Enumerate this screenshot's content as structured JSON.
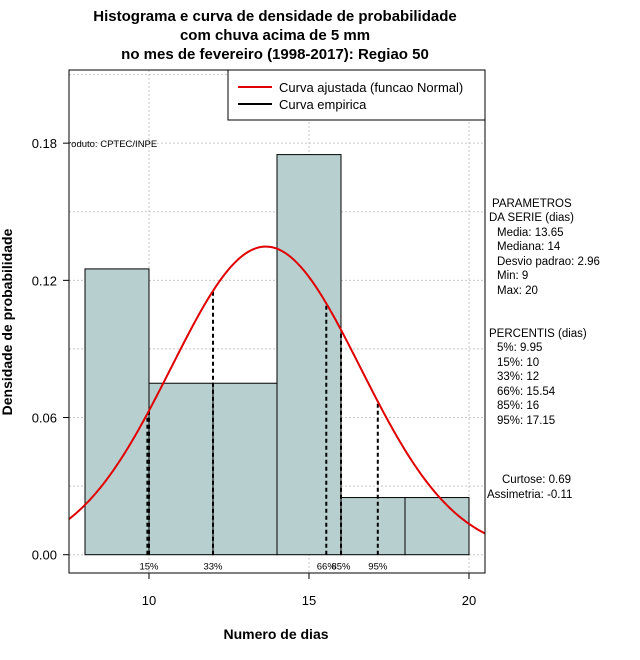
{
  "chart_data": {
    "type": "bar",
    "title": [
      "Histograma e curva de densidade de probabilidade",
      "com chuva acima de 5 mm",
      "no mes de fevereiro (1998-2017): Regiao 50"
    ],
    "xlabel": "Numero de dias",
    "ylabel": "Densidade de probabilidade",
    "xlim": [
      7.5,
      20.5
    ],
    "ylim": [
      -0.008,
      0.212
    ],
    "xticks": [
      10,
      15,
      20
    ],
    "xtick_labels": [
      "10",
      "15",
      "20"
    ],
    "yticks": [
      0.0,
      0.06,
      0.12,
      0.18
    ],
    "ytick_labels": [
      "0.00",
      "0.06",
      "0.12",
      "0.18"
    ],
    "grid": true,
    "bins": [
      {
        "from": 8,
        "to": 10,
        "density": 0.125
      },
      {
        "from": 10,
        "to": 12,
        "density": 0.075
      },
      {
        "from": 12,
        "to": 14,
        "density": 0.075
      },
      {
        "from": 14,
        "to": 16,
        "density": 0.175
      },
      {
        "from": 16,
        "to": 18,
        "density": 0.025
      },
      {
        "from": 18,
        "to": 20,
        "density": 0.025
      }
    ],
    "bar_color": "#b8cfcf",
    "curve": {
      "mean": 13.65,
      "sd": 2.96,
      "color": "#e00000"
    },
    "percentile_lines": [
      {
        "x": 9.95,
        "label": "5%",
        "show_label": false
      },
      {
        "x": 10,
        "label": "15%",
        "show_label": true
      },
      {
        "x": 12,
        "label": "33%",
        "show_label": true
      },
      {
        "x": 15.54,
        "label": "66%",
        "show_label": true
      },
      {
        "x": 16,
        "label": "85%",
        "show_label": true
      },
      {
        "x": 17.15,
        "label": "95%",
        "show_label": true
      }
    ],
    "legend": {
      "position": "top-right",
      "entries": [
        {
          "label": "Curva ajustada (funcao Normal)",
          "color": "#e00000"
        },
        {
          "label": "Curva empirica",
          "color": "#000000"
        }
      ]
    },
    "annotation": "roduto: CPTEC/INPE"
  },
  "parameters": {
    "heading": [
      "PARAMETROS",
      "DA SERIE (dias)"
    ],
    "lines": [
      "Media: 13.65",
      "Mediana: 14",
      "Desvio padrao: 2.96",
      "Min: 9",
      "Max: 20"
    ]
  },
  "percentiles": {
    "heading": "PERCENTIS (dias)",
    "lines": [
      "5%: 9.95",
      "15%: 10",
      "33%: 12",
      "66%: 15.54",
      "85%: 16",
      "95%: 17.15"
    ]
  },
  "shape": {
    "lines": [
      "Curtose: 0.69",
      "Assimetria: -0.11"
    ]
  }
}
